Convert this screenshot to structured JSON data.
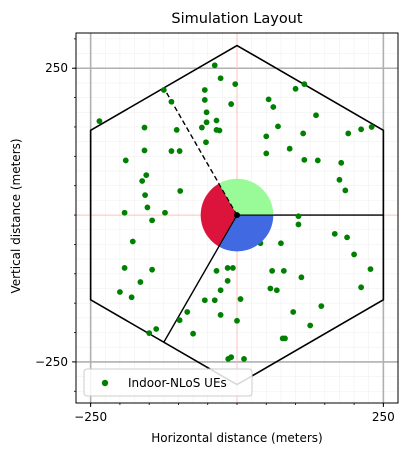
{
  "chart_data": {
    "type": "scatter",
    "title": "Simulation Layout",
    "xlabel": "Horizontal distance (meters)",
    "ylabel": "Vertical distance (meters)",
    "xlim": [
      -275,
      275
    ],
    "ylim": [
      -320,
      310
    ],
    "x_ticks": [
      {
        "value": -250,
        "label": "−250"
      },
      {
        "value": 250,
        "label": "250"
      }
    ],
    "y_ticks": [
      {
        "value": 250,
        "label": "250"
      },
      {
        "value": -250,
        "label": "−250"
      }
    ],
    "grid": true,
    "legend_position": "bottom-left",
    "hexagon_vertices": [
      [
        0,
        288.7
      ],
      [
        250,
        144.3
      ],
      [
        250,
        -144.3
      ],
      [
        0,
        -288.7
      ],
      [
        -250,
        -144.3
      ],
      [
        -250,
        144.3
      ]
    ],
    "sector_lines": [
      {
        "from": [
          0,
          0
        ],
        "to": [
          250,
          0
        ],
        "style": "solid"
      },
      {
        "from": [
          0,
          0
        ],
        "to": [
          -125,
          -216.5
        ],
        "style": "solid"
      },
      {
        "from": [
          0,
          0
        ],
        "to": [
          -125,
          216.5
        ],
        "style": "dashed"
      }
    ],
    "base_station": {
      "x": 0,
      "y": 0,
      "radius": 62,
      "sectors": [
        {
          "start_deg": 0,
          "end_deg": 120,
          "color": "#98fb98"
        },
        {
          "start_deg": 120,
          "end_deg": 240,
          "color": "#dc143c"
        },
        {
          "start_deg": 240,
          "end_deg": 360,
          "color": "#4169e1"
        }
      ]
    },
    "series": [
      {
        "name": "Indoor-NLoS UEs",
        "color": "#008000",
        "points": [
          [
            -38,
            255
          ],
          [
            -125,
            213
          ],
          [
            -55,
            213
          ],
          [
            -28,
            233
          ],
          [
            -3,
            223
          ],
          [
            -10,
            189
          ],
          [
            -55,
            196
          ],
          [
            -35,
            161
          ],
          [
            -52,
            158
          ],
          [
            -112,
            193
          ],
          [
            -52,
            175
          ],
          [
            -158,
            149
          ],
          [
            -158,
            110
          ],
          [
            -112,
            109
          ],
          [
            -53,
            124
          ],
          [
            -35,
            145
          ],
          [
            -30,
            144
          ],
          [
            -60,
            149
          ],
          [
            -235,
            160
          ],
          [
            -190,
            93
          ],
          [
            -98,
            109
          ],
          [
            -103,
            145
          ],
          [
            -155,
            68
          ],
          [
            -192,
            4
          ],
          [
            -153,
            13
          ],
          [
            -157,
            34
          ],
          [
            -162,
            58
          ],
          [
            -97,
            41
          ],
          [
            -123,
            4
          ],
          [
            -145,
            -9
          ],
          [
            -178,
            -45
          ],
          [
            -192,
            -90
          ],
          [
            -180,
            -140
          ],
          [
            -200,
            -131
          ],
          [
            -145,
            -93
          ],
          [
            -165,
            -114
          ],
          [
            -138,
            -194
          ],
          [
            -150,
            -201
          ],
          [
            -75,
            -202
          ],
          [
            -85,
            -165
          ],
          [
            -98,
            -179
          ],
          [
            -55,
            -145
          ],
          [
            -38,
            -145
          ],
          [
            -28,
            -128
          ],
          [
            -16,
            -112
          ],
          [
            -16,
            -90
          ],
          [
            -35,
            -95
          ],
          [
            -7,
            -90
          ],
          [
            0,
            -180
          ],
          [
            -10,
            -242
          ],
          [
            -15,
            -245
          ],
          [
            -28,
            -170
          ],
          [
            6,
            -143
          ],
          [
            12,
            -245
          ],
          [
            78,
            -210
          ],
          [
            82,
            -210
          ],
          [
            125,
            -188
          ],
          [
            144,
            -155
          ],
          [
            96,
            -165
          ],
          [
            68,
            -128
          ],
          [
            57,
            -125
          ],
          [
            80,
            -95
          ],
          [
            60,
            -95
          ],
          [
            110,
            -106
          ],
          [
            40,
            -48
          ],
          [
            75,
            -48
          ],
          [
            105,
            -16
          ],
          [
            105,
            -2
          ],
          [
            167,
            -32
          ],
          [
            200,
            -67
          ],
          [
            228,
            -92
          ],
          [
            212,
            -123
          ],
          [
            188,
            -38
          ],
          [
            185,
            42
          ],
          [
            175,
            60
          ],
          [
            178,
            89
          ],
          [
            115,
            94
          ],
          [
            190,
            139
          ],
          [
            230,
            150
          ],
          [
            212,
            146
          ],
          [
            138,
            93
          ],
          [
            113,
            139
          ],
          [
            90,
            113
          ],
          [
            70,
            151
          ],
          [
            50,
            134
          ],
          [
            50,
            105
          ],
          [
            62,
            184
          ],
          [
            115,
            223
          ],
          [
            135,
            170
          ],
          [
            54,
            197
          ],
          [
            100,
            215
          ]
        ]
      }
    ]
  }
}
